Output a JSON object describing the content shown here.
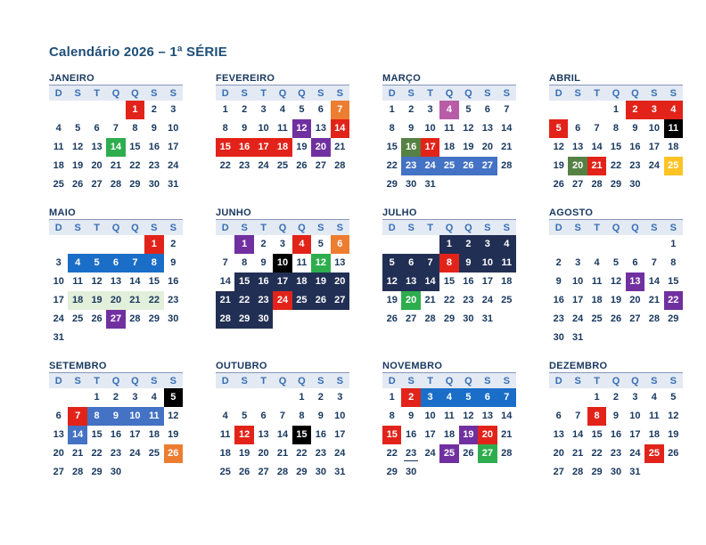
{
  "page": {
    "title": "Calendário 2026 – 1ª SÉRIE"
  },
  "weekday_headers": [
    "D",
    "S",
    "T",
    "Q",
    "Q",
    "S",
    "S"
  ],
  "colors": {
    "title_text": "#1F4E79",
    "month_title_text": "#17375E",
    "header_bg": "#E3EAF3",
    "header_text": "#376EB5",
    "day_text": "#17375E",
    "highlights": {
      "red": "#E2231A",
      "green": "#2EAD4E",
      "olive": "#568144",
      "orange": "#ED7D31",
      "purple": "#7030A0",
      "magenta": "#B95CA8",
      "black": "#000000",
      "yellow": "#FFC324",
      "blue_med": "#4472C4",
      "blue_vivid": "#1B6EC8",
      "navy": "#222F54",
      "green_pale": "#E2EFDA"
    },
    "dark_text_highlights": [
      "green_pale"
    ]
  },
  "months": [
    {
      "name": "JANEIRO",
      "weeks": [
        [
          null,
          null,
          null,
          null,
          [
            1,
            "red"
          ],
          2,
          3
        ],
        [
          4,
          5,
          6,
          7,
          8,
          9,
          10
        ],
        [
          11,
          12,
          13,
          [
            14,
            "green"
          ],
          15,
          16,
          17
        ],
        [
          18,
          19,
          20,
          21,
          22,
          23,
          24
        ],
        [
          25,
          26,
          27,
          28,
          29,
          30,
          31
        ]
      ]
    },
    {
      "name": "FEVEREIRO",
      "weeks": [
        [
          1,
          2,
          3,
          4,
          5,
          6,
          [
            7,
            "orange"
          ]
        ],
        [
          8,
          9,
          10,
          11,
          [
            12,
            "purple"
          ],
          13,
          [
            14,
            "red"
          ]
        ],
        [
          [
            15,
            "red"
          ],
          [
            16,
            "red"
          ],
          [
            17,
            "red"
          ],
          [
            18,
            "red"
          ],
          19,
          [
            20,
            "purple"
          ],
          21
        ],
        [
          22,
          23,
          24,
          25,
          26,
          27,
          28
        ]
      ]
    },
    {
      "name": "MARÇO",
      "weeks": [
        [
          1,
          2,
          3,
          [
            4,
            "magenta"
          ],
          5,
          6,
          7
        ],
        [
          8,
          9,
          10,
          11,
          12,
          13,
          14
        ],
        [
          15,
          [
            16,
            "olive"
          ],
          [
            17,
            "red"
          ],
          18,
          19,
          20,
          21
        ],
        [
          22,
          [
            23,
            "blue_med"
          ],
          [
            24,
            "blue_med"
          ],
          [
            25,
            "blue_med"
          ],
          [
            26,
            "blue_med"
          ],
          [
            27,
            "blue_med"
          ],
          28
        ],
        [
          29,
          30,
          31,
          null,
          null,
          null,
          null
        ]
      ]
    },
    {
      "name": "ABRIL",
      "weeks": [
        [
          null,
          null,
          null,
          1,
          [
            2,
            "red"
          ],
          [
            3,
            "red"
          ],
          [
            4,
            "red"
          ]
        ],
        [
          [
            5,
            "red"
          ],
          6,
          7,
          8,
          9,
          10,
          [
            11,
            "black"
          ]
        ],
        [
          12,
          13,
          14,
          15,
          16,
          17,
          18
        ],
        [
          19,
          [
            20,
            "olive"
          ],
          [
            21,
            "red"
          ],
          22,
          23,
          24,
          [
            25,
            "yellow"
          ]
        ],
        [
          26,
          27,
          28,
          29,
          30,
          null,
          null
        ]
      ]
    },
    {
      "name": "MAIO",
      "weeks": [
        [
          null,
          null,
          null,
          null,
          null,
          [
            1,
            "red"
          ],
          2
        ],
        [
          3,
          [
            4,
            "blue_vivid"
          ],
          [
            5,
            "blue_vivid"
          ],
          [
            6,
            "blue_vivid"
          ],
          [
            7,
            "blue_vivid"
          ],
          [
            8,
            "blue_vivid"
          ],
          9
        ],
        [
          10,
          11,
          12,
          13,
          14,
          15,
          16
        ],
        [
          17,
          [
            18,
            "green_pale"
          ],
          [
            19,
            "green_pale"
          ],
          [
            20,
            "green_pale"
          ],
          [
            21,
            "green_pale"
          ],
          [
            22,
            "green_pale"
          ],
          23
        ],
        [
          24,
          25,
          26,
          [
            27,
            "purple"
          ],
          28,
          29,
          30
        ],
        [
          31,
          null,
          null,
          null,
          null,
          null,
          null
        ]
      ]
    },
    {
      "name": "JUNHO",
      "weeks": [
        [
          null,
          [
            1,
            "purple"
          ],
          2,
          3,
          [
            4,
            "red"
          ],
          5,
          [
            6,
            "orange"
          ]
        ],
        [
          7,
          8,
          9,
          [
            10,
            "black"
          ],
          11,
          [
            12,
            "green"
          ],
          13
        ],
        [
          14,
          [
            15,
            "navy"
          ],
          [
            16,
            "navy"
          ],
          [
            17,
            "navy"
          ],
          [
            18,
            "navy"
          ],
          [
            19,
            "navy"
          ],
          [
            20,
            "navy"
          ]
        ],
        [
          [
            21,
            "navy"
          ],
          [
            22,
            "navy"
          ],
          [
            23,
            "navy"
          ],
          [
            24,
            "red"
          ],
          [
            25,
            "navy"
          ],
          [
            26,
            "navy"
          ],
          [
            27,
            "navy"
          ]
        ],
        [
          [
            28,
            "navy"
          ],
          [
            29,
            "navy"
          ],
          [
            30,
            "navy"
          ],
          null,
          null,
          null,
          null
        ]
      ]
    },
    {
      "name": "JULHO",
      "weeks": [
        [
          null,
          null,
          null,
          [
            1,
            "navy"
          ],
          [
            2,
            "navy"
          ],
          [
            3,
            "navy"
          ],
          [
            4,
            "navy"
          ]
        ],
        [
          [
            5,
            "navy"
          ],
          [
            6,
            "navy"
          ],
          [
            7,
            "navy"
          ],
          [
            8,
            "red"
          ],
          [
            9,
            "navy"
          ],
          [
            10,
            "navy"
          ],
          [
            11,
            "navy"
          ]
        ],
        [
          [
            12,
            "navy"
          ],
          [
            13,
            "navy"
          ],
          [
            14,
            "navy"
          ],
          15,
          16,
          17,
          18
        ],
        [
          19,
          [
            20,
            "green"
          ],
          21,
          22,
          23,
          24,
          25
        ],
        [
          26,
          27,
          28,
          29,
          30,
          31,
          null
        ]
      ]
    },
    {
      "name": "AGOSTO",
      "weeks": [
        [
          null,
          null,
          null,
          null,
          null,
          null,
          1
        ],
        [
          2,
          3,
          4,
          5,
          6,
          7,
          8
        ],
        [
          9,
          10,
          11,
          12,
          [
            13,
            "purple"
          ],
          14,
          15
        ],
        [
          16,
          17,
          18,
          19,
          20,
          21,
          [
            22,
            "purple"
          ]
        ],
        [
          23,
          24,
          25,
          26,
          27,
          28,
          29
        ],
        [
          30,
          31,
          null,
          null,
          null,
          null,
          null
        ]
      ]
    },
    {
      "name": "SETEMBRO",
      "weeks": [
        [
          null,
          null,
          1,
          2,
          3,
          4,
          [
            5,
            "black"
          ]
        ],
        [
          6,
          [
            7,
            "red"
          ],
          [
            8,
            "blue_med"
          ],
          [
            9,
            "blue_med"
          ],
          [
            10,
            "blue_med"
          ],
          [
            11,
            "blue_med"
          ],
          12
        ],
        [
          13,
          [
            14,
            "blue_med"
          ],
          15,
          16,
          17,
          18,
          19
        ],
        [
          20,
          21,
          22,
          23,
          24,
          25,
          [
            26,
            "orange"
          ]
        ],
        [
          27,
          28,
          29,
          30,
          null,
          null,
          null
        ]
      ]
    },
    {
      "name": "OUTUBRO",
      "weeks": [
        [
          null,
          null,
          null,
          null,
          1,
          2,
          3
        ],
        [
          4,
          5,
          6,
          7,
          8,
          9,
          10
        ],
        [
          11,
          [
            12,
            "red"
          ],
          13,
          14,
          [
            15,
            "black"
          ],
          16,
          17
        ],
        [
          18,
          19,
          20,
          21,
          22,
          23,
          24
        ],
        [
          25,
          26,
          27,
          28,
          29,
          30,
          31
        ]
      ]
    },
    {
      "name": "NOVEMBRO",
      "weeks": [
        [
          1,
          [
            2,
            "red"
          ],
          [
            3,
            "blue_vivid"
          ],
          [
            4,
            "blue_vivid"
          ],
          [
            5,
            "blue_vivid"
          ],
          [
            6,
            "blue_vivid"
          ],
          [
            7,
            "blue_vivid"
          ]
        ],
        [
          8,
          9,
          10,
          11,
          12,
          13,
          14
        ],
        [
          [
            15,
            "red"
          ],
          16,
          17,
          18,
          [
            19,
            "purple"
          ],
          [
            20,
            "red"
          ],
          21
        ],
        [
          22,
          [
            23,
            "underline"
          ],
          24,
          [
            25,
            "purple"
          ],
          26,
          [
            27,
            "green"
          ],
          28
        ],
        [
          29,
          30,
          null,
          null,
          null,
          null,
          null
        ]
      ]
    },
    {
      "name": "DEZEMBRO",
      "weeks": [
        [
          null,
          null,
          1,
          2,
          3,
          4,
          5
        ],
        [
          6,
          7,
          [
            8,
            "red"
          ],
          9,
          10,
          11,
          12
        ],
        [
          13,
          14,
          15,
          16,
          17,
          18,
          19
        ],
        [
          20,
          21,
          22,
          23,
          24,
          [
            25,
            "red"
          ],
          26
        ],
        [
          27,
          28,
          29,
          30,
          31,
          null,
          null
        ]
      ]
    }
  ]
}
